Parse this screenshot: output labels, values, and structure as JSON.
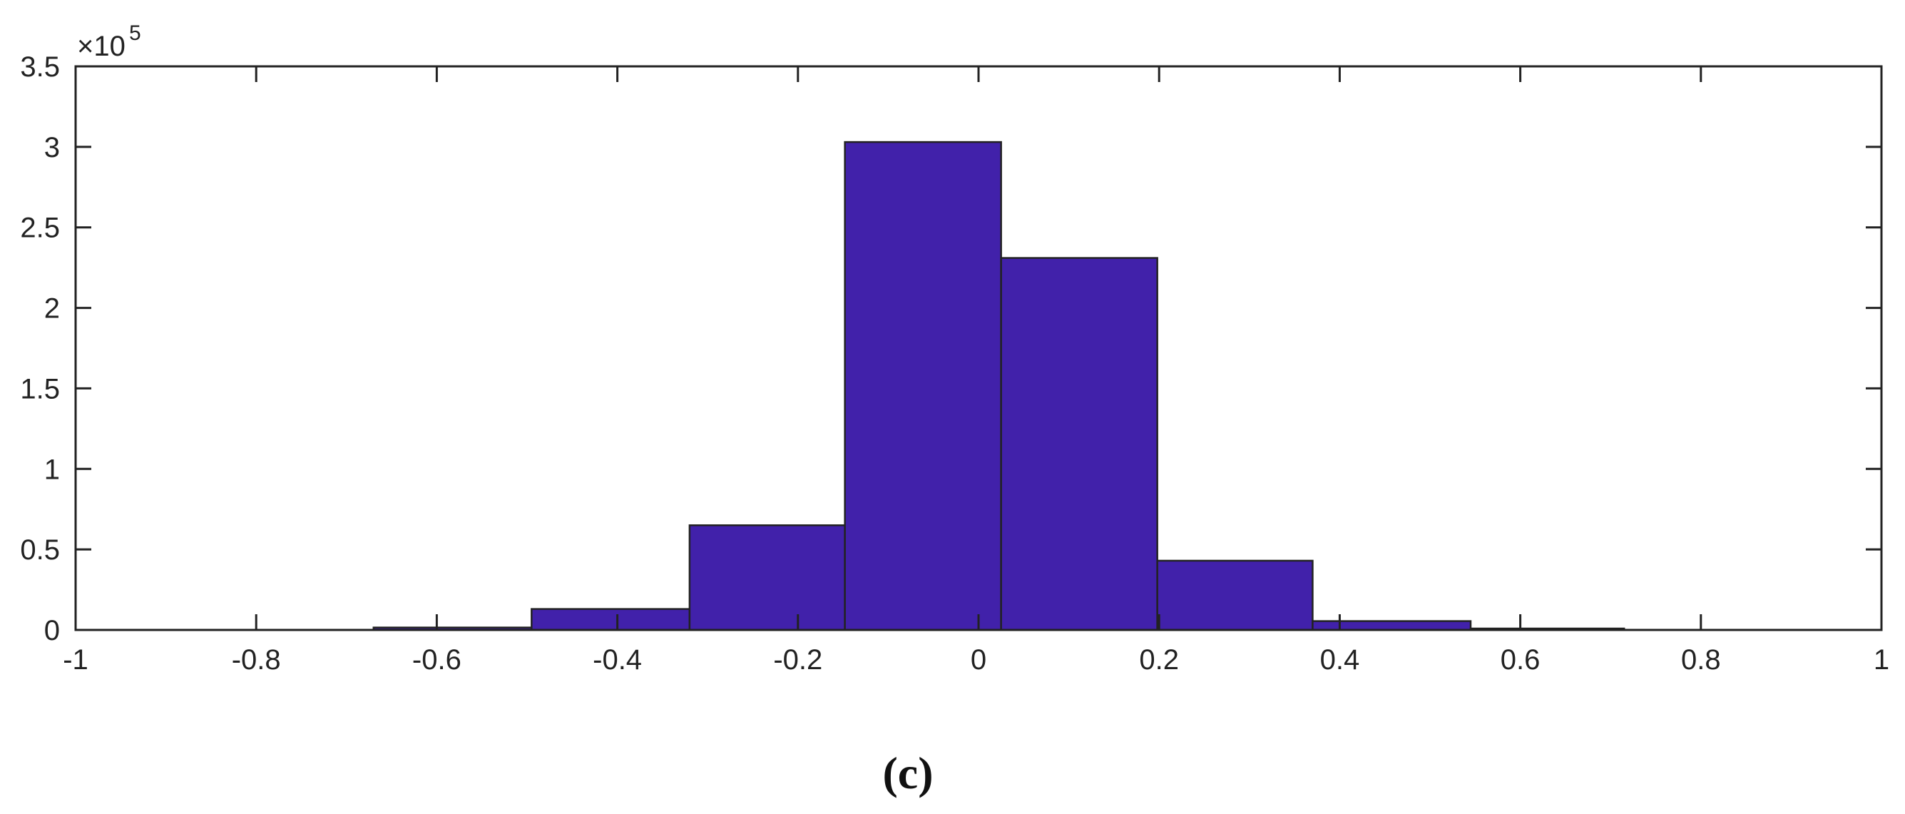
{
  "chart_data": {
    "type": "bar",
    "title": "",
    "xlabel": "",
    "ylabel": "",
    "xlim": [
      -1,
      1
    ],
    "ylim": [
      0,
      3.5
    ],
    "y_multiplier": "×10",
    "y_exponent": "5",
    "grid": false,
    "bar_color": "#4121aa",
    "bins": [
      {
        "x0": -0.67,
        "x1": -0.495,
        "value": 0.015
      },
      {
        "x0": -0.495,
        "x1": -0.32,
        "value": 0.13
      },
      {
        "x0": -0.32,
        "x1": -0.148,
        "value": 0.65
      },
      {
        "x0": -0.148,
        "x1": 0.025,
        "value": 3.03
      },
      {
        "x0": 0.025,
        "x1": 0.198,
        "value": 2.31
      },
      {
        "x0": 0.198,
        "x1": 0.37,
        "value": 0.43
      },
      {
        "x0": 0.37,
        "x1": 0.545,
        "value": 0.055
      },
      {
        "x0": 0.545,
        "x1": 0.715,
        "value": 0.008
      }
    ],
    "x_ticks": [
      {
        "value": -1,
        "label": "-1"
      },
      {
        "value": -0.8,
        "label": "-0.8"
      },
      {
        "value": -0.6,
        "label": "-0.6"
      },
      {
        "value": -0.4,
        "label": "-0.4"
      },
      {
        "value": -0.2,
        "label": "-0.2"
      },
      {
        "value": 0,
        "label": "0"
      },
      {
        "value": 0.2,
        "label": "0.2"
      },
      {
        "value": 0.4,
        "label": "0.4"
      },
      {
        "value": 0.6,
        "label": "0.6"
      },
      {
        "value": 0.8,
        "label": "0.8"
      },
      {
        "value": 1,
        "label": "1"
      }
    ],
    "y_ticks": [
      {
        "value": 0,
        "label": "0"
      },
      {
        "value": 0.5,
        "label": "0.5"
      },
      {
        "value": 1,
        "label": "1"
      },
      {
        "value": 1.5,
        "label": "1.5"
      },
      {
        "value": 2,
        "label": "2"
      },
      {
        "value": 2.5,
        "label": "2.5"
      },
      {
        "value": 3,
        "label": "3"
      },
      {
        "value": 3.5,
        "label": "3.5"
      }
    ]
  },
  "caption": "(c)"
}
